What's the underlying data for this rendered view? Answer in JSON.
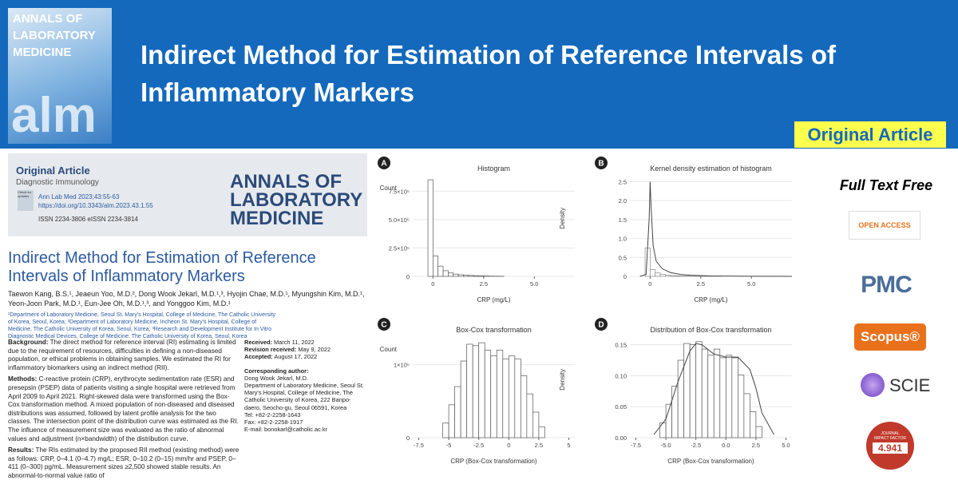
{
  "banner": {
    "cover": {
      "line1": "ANNALS OF",
      "line2": "LABORATORY",
      "line3": "MEDICINE",
      "mark": "alm"
    },
    "title_line1": "Indirect Method for Estimation of Reference Intervals of",
    "title_line2": "Inflammatory Markers",
    "badge": "Original Article"
  },
  "paper": {
    "kind": "Original Article",
    "section": "Diagnostic Immunology",
    "citation": "Ann Lab Med 2023;43:55-63",
    "doi": "https://doi.org/10.3343/alm.2023.43.1.55",
    "issn": "ISSN 2234-3806    eISSN 2234-3814",
    "check": "Check for updates",
    "logo": [
      "ANNALS OF",
      "LABORATORY",
      "MEDICINE"
    ],
    "title": "Indirect Method for Estimation of Reference Intervals of Inflammatory Markers",
    "authors": "Taewon Kang, B.S.¹, Jeaeun Yoo, M.D.², Dong Wook Jekarl, M.D.¹,³, Hyojin Chae, M.D.¹, Myungshin Kim, M.D.¹, Yeon-Joon Park, M.D.¹, Eun-Jee Oh, M.D.¹,³, and Yonggoo Kim, M.D.¹",
    "affiliations": "¹Department of Laboratory Medicine, Seoul St. Mary's Hospital, College of Medicine, The Catholic University of Korea, Seoul, Korea; ²Department of Laboratory Medicine, Incheon St. Mary's Hospital, College of Medicine, The Catholic University of Korea, Seoul, Korea; ³Research and Development Institute for In Vitro Diagnostic Medical Devices, College of Medicine, The Catholic University of Korea, Seoul, Korea",
    "abstract": [
      {
        "label": "Background:",
        "text": "The direct method for reference interval (RI) estimating is limited due to the requirement of resources, difficulties in defining a non-diseased population, or ethical problems in obtaining samples. We estimated the RI for inflammatory biomarkers using an indirect method (RII)."
      },
      {
        "label": "Methods:",
        "text": "C-reactive protein (CRP), erythrocyte sedimentation rate (ESR) and presepsin (PSEP) data of patients visiting a single hospital were retrieved from April 2009 to April 2021. Right-skewed data were transformed using the Box-Cox transformation method. A mixed population of non-diseased and diseased distributions was assumed, followed by latent profile analysis for the two classes. The intersection point of the distribution curve was estimated as the RI. The influence of measurement size was evaluated as the ratio of abnormal values and adjustment (n×bandwidth) of the distribution curve."
      },
      {
        "label": "Results:",
        "text": "The RIs estimated by the proposed RII method (existing method) were as follows: CRP, 0–4.1 (0–4.7) mg/L; ESR, 0–10.2 (0–15) mm/hr and PSEP, 0–411 (0–300) pg/mL. Measurement sizes ≥2,500 showed stable results. An abnormal-to-normal value ratio of"
      }
    ],
    "dates": [
      {
        "label": "Received:",
        "text": "March 11, 2022"
      },
      {
        "label": "Revision received:",
        "text": "May 9, 2022"
      },
      {
        "label": "Accepted:",
        "text": "August 17, 2022"
      }
    ],
    "correspondence_label": "Corresponding author:",
    "correspondence": [
      "Dong Wook Jekarl, M.D.",
      "Department of Laboratory Medicine, Seoul St. Mary's Hospital, College of Medicine, The Catholic University of Korea, 222 Banpo-daero, Seocho-gu, Seoul 06591, Korea",
      "Tel: +82-2-2258-1643",
      "Fax: +82-2-2258-1917",
      "E-mail: bonokarl@catholic.ac.kr"
    ]
  },
  "sidebar": {
    "free": "Full Text Free",
    "open_access": "OPEN ACCESS",
    "pmc": "PMC",
    "scopus": "Scopus®",
    "scie": "SCIE",
    "impact_top": "JOURNAL IMPACT FACTOR",
    "impact": "4.941"
  },
  "chart_data": [
    {
      "type": "histogram",
      "panel": "A",
      "title": "Histogram",
      "ylabel": "Count",
      "xlabel": "CRP (mg/L)",
      "bar_color": "#ffffff",
      "edge_color": "#555555",
      "bins": [
        -0.25,
        0,
        0.25,
        0.5,
        0.75,
        1,
        1.25,
        1.5,
        1.75,
        2,
        2.25,
        2.5,
        2.75,
        3,
        3.25,
        3.5
      ],
      "counts": [
        850000,
        180000,
        90000,
        50000,
        30000,
        20000,
        14000,
        10000,
        8000,
        6000,
        4000,
        3000,
        2000,
        1500,
        1000
      ],
      "xlim": [
        -1,
        7
      ],
      "ylim": [
        0,
        900000
      ],
      "xticks": [
        0,
        2.5,
        {
          "value": 5,
          "label": "5.0"
        }
      ],
      "yticks": [
        0,
        {
          "value": 250000,
          "label": "2.5×10⁵"
        },
        {
          "value": 500000,
          "label": "5.0×10⁵"
        },
        {
          "value": 750000,
          "label": "7.5×10⁵"
        }
      ]
    },
    {
      "type": "histogram",
      "panel": "B",
      "title": "Kernel density estimation of histogram",
      "ylabel": "Density",
      "xlabel": "CRP (mg/L)",
      "bar_color": "#ffffff",
      "edge_color": "#888888",
      "bins": [
        -0.25,
        0,
        0.25,
        0.5,
        0.75,
        1,
        1.25,
        1.5,
        1.75,
        2,
        2.25,
        2.5,
        2.75,
        3,
        3.25,
        3.5
      ],
      "counts": [
        0.75,
        0.18,
        0.09,
        0.05,
        0.03,
        0.02,
        0.014,
        0.01,
        0.008,
        0.006,
        0.004,
        0.003,
        0.002,
        0.0015,
        0.001
      ],
      "curve": {
        "x": [
          -0.5,
          -0.2,
          -0.05,
          0,
          0.05,
          0.15,
          0.3,
          0.6,
          1,
          1.5,
          2,
          3,
          5,
          7
        ],
        "values": [
          0,
          0.05,
          1.5,
          2.5,
          1.8,
          0.8,
          0.4,
          0.2,
          0.1,
          0.05,
          0.03,
          0.01,
          0.003,
          0
        ]
      },
      "xlim": [
        -1,
        7
      ],
      "ylim": [
        0,
        2.7
      ],
      "xticks": [
        0,
        2.5,
        {
          "value": 5,
          "label": "5.0"
        }
      ],
      "yticks": [
        0,
        0.5,
        {
          "value": 1,
          "label": "1.0"
        },
        1.5,
        {
          "value": 2,
          "label": "2.0"
        },
        2.5
      ]
    },
    {
      "type": "histogram",
      "panel": "C",
      "title": "Box-Cox transformation",
      "ylabel": "Count",
      "xlabel": "CRP (Box-Cox transformation)",
      "bar_color": "#ffffff",
      "edge_color": "#555555",
      "bins": [
        -5.5,
        -5,
        -4.5,
        -4,
        -3.5,
        -3,
        -2.5,
        -2,
        -1.5,
        -1,
        -0.5,
        0,
        0.5,
        1,
        1.5,
        2,
        2.5,
        3
      ],
      "counts": [
        20000,
        45000,
        70000,
        105000,
        128000,
        126000,
        130000,
        120000,
        112000,
        120000,
        108000,
        112000,
        108000,
        85000,
        60000,
        35000,
        15000
      ],
      "xlim": [
        -8,
        5.5
      ],
      "ylim": [
        0,
        140000
      ],
      "xticks": [
        -7.5,
        -5,
        -2.5,
        0,
        2.5,
        5
      ],
      "yticks": [
        0,
        {
          "value": 100000,
          "label": "1×10⁵"
        }
      ]
    },
    {
      "type": "histogram",
      "panel": "D",
      "title": "Distribution of Box-Cox transformation",
      "ylabel": "Density",
      "xlabel": "CRP (Box-Cox transformation)",
      "bar_color": "#ffffff",
      "edge_color": "#555555",
      "bins": [
        -5.5,
        -5,
        -4.5,
        -4,
        -3.5,
        -3,
        -2.5,
        -2,
        -1.5,
        -1,
        -0.5,
        0,
        0.5,
        1,
        1.5,
        2,
        2.5,
        3
      ],
      "counts": [
        0.024,
        0.054,
        0.083,
        0.125,
        0.152,
        0.15,
        0.155,
        0.143,
        0.133,
        0.143,
        0.129,
        0.133,
        0.129,
        0.101,
        0.071,
        0.042,
        0.018
      ],
      "curve": {
        "x": [
          -6,
          -5,
          -4,
          -3,
          -2.5,
          -2,
          -1,
          0,
          1,
          2,
          2.5,
          3,
          4
        ],
        "values": [
          0.005,
          0.03,
          0.09,
          0.14,
          0.152,
          0.15,
          0.135,
          0.13,
          0.13,
          0.11,
          0.08,
          0.04,
          0.005
        ]
      },
      "xlim": [
        -8,
        5.5
      ],
      "ylim": [
        0,
        0.165
      ],
      "xticks": [
        -7.5,
        {
          "value": -5,
          "label": "-5.0"
        },
        -2.5,
        {
          "value": 0,
          "label": "0.0"
        },
        2.5,
        {
          "value": 5,
          "label": "5.0"
        }
      ],
      "yticks": [
        {
          "value": 0,
          "label": "0.00"
        },
        0.05,
        {
          "value": 0.1,
          "label": "0.10"
        },
        0.15
      ]
    }
  ]
}
